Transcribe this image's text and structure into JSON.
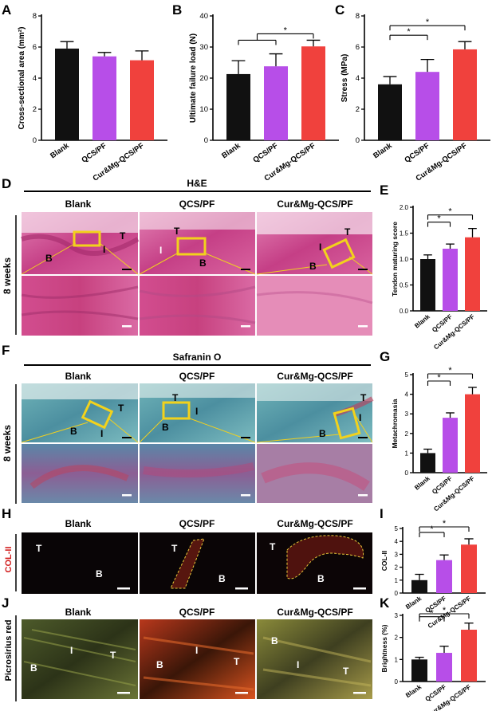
{
  "panels": {
    "A": "A",
    "B": "B",
    "C": "C",
    "D": "D",
    "E": "E",
    "F": "F",
    "G": "G",
    "H": "H",
    "I": "I",
    "J": "J",
    "K": "K"
  },
  "groups": [
    "Blank",
    "QCS/PF",
    "Cur&Mg-QCS/PF"
  ],
  "group_colors": [
    "#111111",
    "#b74ee8",
    "#f0413d"
  ],
  "star": "*",
  "row_labels": {
    "weeks": "8 weeks",
    "col2": "COL-II",
    "picro": "Picrosirius red"
  },
  "section_titles": {
    "he": "H&E",
    "safranin": "Safranin O"
  },
  "tissue_labels": {
    "T": "T",
    "B": "B",
    "I": "I"
  },
  "chart_data": [
    {
      "id": "A",
      "type": "bar",
      "categories": [
        "Blank",
        "QCS/PF",
        "Cur&Mg-QCS/PF"
      ],
      "values": [
        5.9,
        5.4,
        5.15
      ],
      "errors": [
        0.45,
        0.25,
        0.6
      ],
      "ylabel": "Cross-sectional area (mm²)",
      "ylim": [
        0,
        8
      ],
      "yticks": [
        "0",
        "2",
        "4",
        "6",
        "8"
      ],
      "significance": []
    },
    {
      "id": "B",
      "type": "bar",
      "categories": [
        "Blank",
        "QCS/PF",
        "Cur&Mg-QCS/PF"
      ],
      "values": [
        21.3,
        23.8,
        30.2
      ],
      "errors": [
        4.3,
        4.0,
        2.0
      ],
      "ylabel": "Ultimate failure load (N)",
      "ylim": [
        0,
        40
      ],
      "yticks": [
        "0",
        "10",
        "20",
        "30",
        "40"
      ],
      "significance": [
        {
          "from": [
            0,
            1
          ],
          "to": 2
        }
      ]
    },
    {
      "id": "C",
      "type": "bar",
      "categories": [
        "Blank",
        "QCS/PF",
        "Cur&Mg-QCS/PF"
      ],
      "values": [
        3.6,
        4.4,
        5.85
      ],
      "errors": [
        0.5,
        0.8,
        0.5
      ],
      "ylabel": "Stress (MPa)",
      "ylim": [
        0,
        8
      ],
      "yticks": [
        "0",
        "2",
        "4",
        "6",
        "8"
      ],
      "significance": [
        {
          "from": 0,
          "to": 1
        },
        {
          "from": 0,
          "to": 2
        }
      ]
    },
    {
      "id": "E",
      "type": "bar",
      "categories": [
        "Blank",
        "QCS/PF",
        "Cur&Mg-QCS/PF"
      ],
      "values": [
        1.0,
        1.2,
        1.42
      ],
      "errors": [
        0.08,
        0.09,
        0.17
      ],
      "ylabel": "Tendon maturing score",
      "ylim": [
        0,
        2.0
      ],
      "yticks": [
        "0.0",
        "0.5",
        "1.0",
        "1.5",
        "2.0"
      ],
      "significance": [
        {
          "from": 0,
          "to": 1
        },
        {
          "from": 0,
          "to": 2
        }
      ]
    },
    {
      "id": "G",
      "type": "bar",
      "categories": [
        "Blank",
        "QCS/PF",
        "Cur&Mg-QCS/PF"
      ],
      "values": [
        1.0,
        2.8,
        4.0
      ],
      "errors": [
        0.2,
        0.25,
        0.35
      ],
      "ylabel": "Metachromasia",
      "ylim": [
        0,
        5
      ],
      "yticks": [
        "0",
        "1",
        "2",
        "3",
        "4",
        "5"
      ],
      "significance": [
        {
          "from": 0,
          "to": 1
        },
        {
          "from": 0,
          "to": 2
        }
      ]
    },
    {
      "id": "I",
      "type": "bar",
      "categories": [
        "Blank",
        "QCS/PF",
        "Cur&Mg-QCS/PF"
      ],
      "values": [
        1.0,
        2.55,
        3.75
      ],
      "errors": [
        0.45,
        0.4,
        0.45
      ],
      "ylabel": "COL-II",
      "ylim": [
        0,
        5
      ],
      "yticks": [
        "0",
        "1",
        "2",
        "3",
        "4",
        "5"
      ],
      "significance": [
        {
          "from": 0,
          "to": 1
        },
        {
          "from": 0,
          "to": 2
        }
      ]
    },
    {
      "id": "K",
      "type": "bar",
      "categories": [
        "Blank",
        "QCS/PF",
        "Cur&Mg-QCS/PF"
      ],
      "values": [
        1.0,
        1.3,
        2.35
      ],
      "errors": [
        0.1,
        0.3,
        0.3
      ],
      "ylabel": "Brightness (%)",
      "ylim": [
        0,
        3
      ],
      "yticks": [
        "0",
        "1",
        "2",
        "3"
      ],
      "significance": [
        {
          "from": 0,
          "to": 1
        },
        {
          "from": 0,
          "to": 2
        }
      ]
    }
  ]
}
